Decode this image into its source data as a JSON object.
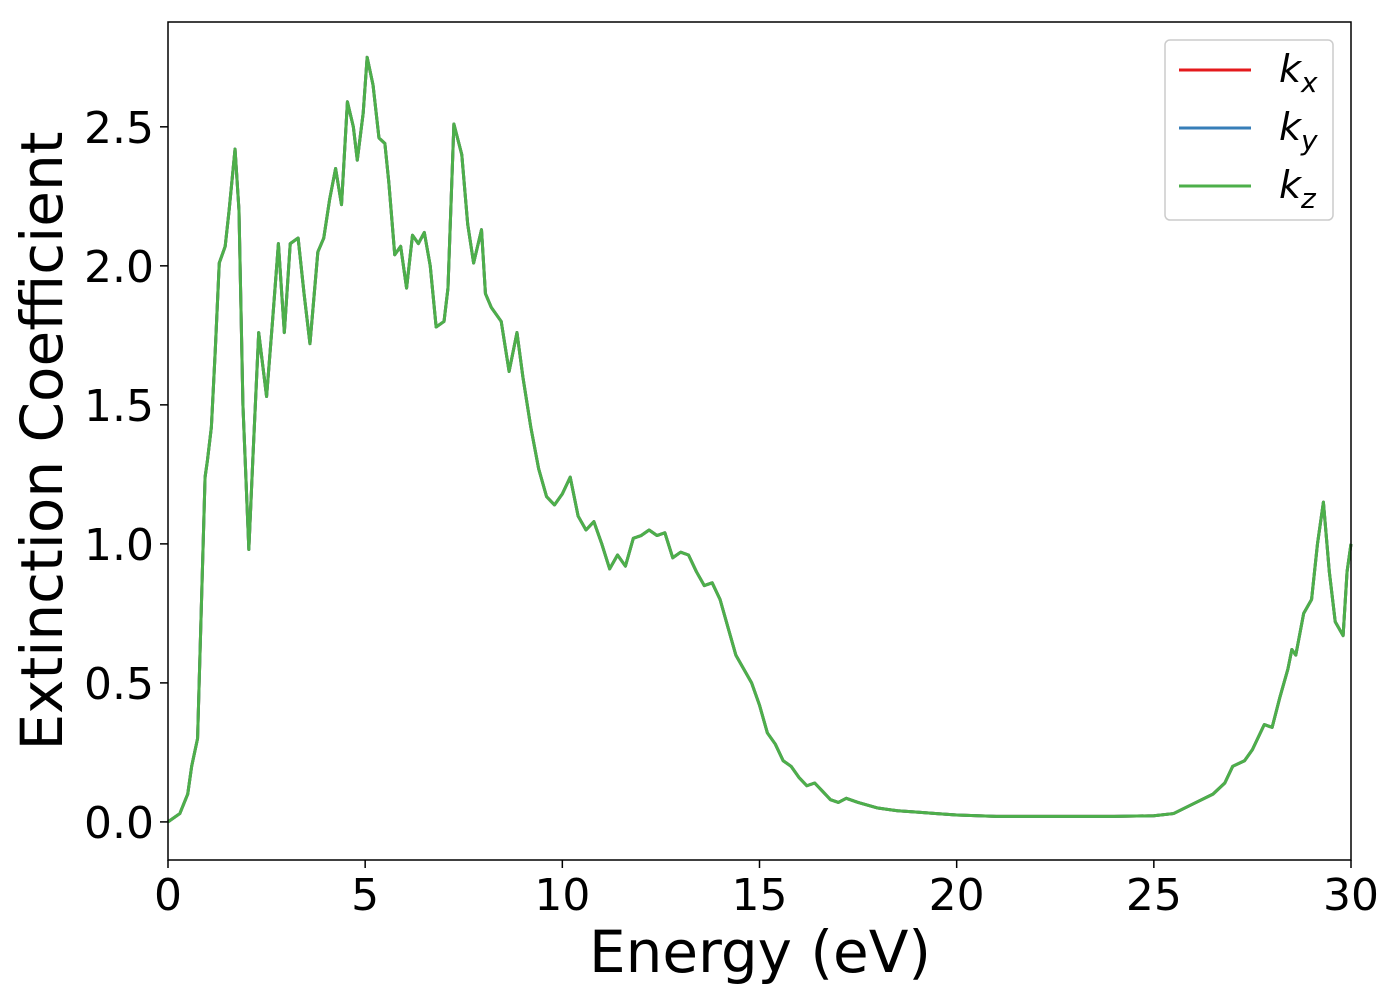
{
  "chart_data": {
    "type": "line",
    "xlabel": "Energy (eV)",
    "ylabel": "Extinction Coefficient",
    "xlim": [
      0,
      30
    ],
    "ylim": [
      -0.137,
      2.877
    ],
    "xticks": [
      0,
      5,
      10,
      15,
      20,
      25,
      30
    ],
    "yticks": [
      {
        "value": 0,
        "label": "0.0"
      },
      0.5,
      {
        "value": 1,
        "label": "1.0"
      },
      1.5,
      {
        "value": 2,
        "label": "2.0"
      },
      2.5
    ],
    "legend": "upper right",
    "x": [
      0,
      0.3,
      0.5,
      0.6,
      0.75,
      0.94,
      1.0,
      1.1,
      1.2,
      1.3,
      1.45,
      1.55,
      1.7,
      1.8,
      1.9,
      2.05,
      2.15,
      2.3,
      2.5,
      2.65,
      2.8,
      2.95,
      3.1,
      3.3,
      3.45,
      3.6,
      3.8,
      3.95,
      4.1,
      4.25,
      4.4,
      4.55,
      4.7,
      4.8,
      4.95,
      5.05,
      5.2,
      5.35,
      5.5,
      5.6,
      5.75,
      5.9,
      6.05,
      6.2,
      6.35,
      6.5,
      6.65,
      6.8,
      7.0,
      7.1,
      7.25,
      7.45,
      7.6,
      7.75,
      7.95,
      8.05,
      8.2,
      8.45,
      8.65,
      8.85,
      9.0,
      9.2,
      9.4,
      9.6,
      9.8,
      10.0,
      10.2,
      10.4,
      10.6,
      10.8,
      11.0,
      11.2,
      11.4,
      11.6,
      11.8,
      12.0,
      12.2,
      12.4,
      12.6,
      12.8,
      13.0,
      13.2,
      13.4,
      13.6,
      13.8,
      14.0,
      14.2,
      14.4,
      14.6,
      14.8,
      15.0,
      15.2,
      15.4,
      15.6,
      15.8,
      16.0,
      16.2,
      16.4,
      16.6,
      16.8,
      17.0,
      17.2,
      17.5,
      18.0,
      18.5,
      19.0,
      19.5,
      20.0,
      21,
      22,
      23,
      24,
      25,
      25.5,
      26,
      26.5,
      26.8,
      27.0,
      27.3,
      27.5,
      27.8,
      28.0,
      28.2,
      28.4,
      28.5,
      28.6,
      28.8,
      29.0,
      29.15,
      29.3,
      29.45,
      29.6,
      29.8,
      29.9,
      30.0
    ],
    "series": [
      {
        "name": "kx",
        "color": "#e41a1c",
        "values": [
          0,
          0.03,
          0.1,
          0.2,
          0.3,
          1.24,
          1.3,
          1.42,
          1.7,
          2.01,
          2.07,
          2.2,
          2.42,
          2.2,
          1.5,
          0.98,
          1.3,
          1.76,
          1.53,
          1.8,
          2.08,
          1.76,
          2.08,
          2.1,
          1.9,
          1.72,
          2.05,
          2.1,
          2.24,
          2.35,
          2.22,
          2.59,
          2.5,
          2.38,
          2.55,
          2.75,
          2.65,
          2.46,
          2.44,
          2.3,
          2.04,
          2.07,
          1.92,
          2.11,
          2.08,
          2.12,
          2.0,
          1.78,
          1.8,
          1.92,
          2.51,
          2.4,
          2.15,
          2.01,
          2.13,
          1.9,
          1.85,
          1.8,
          1.62,
          1.76,
          1.6,
          1.42,
          1.27,
          1.17,
          1.14,
          1.18,
          1.24,
          1.1,
          1.05,
          1.08,
          1.0,
          0.91,
          0.96,
          0.92,
          1.02,
          1.03,
          1.05,
          1.03,
          1.04,
          0.95,
          0.97,
          0.96,
          0.9,
          0.85,
          0.86,
          0.8,
          0.7,
          0.6,
          0.55,
          0.5,
          0.42,
          0.32,
          0.28,
          0.22,
          0.2,
          0.16,
          0.13,
          0.14,
          0.11,
          0.08,
          0.07,
          0.085,
          0.07,
          0.05,
          0.04,
          0.035,
          0.03,
          0.025,
          0.02,
          0.02,
          0.02,
          0.02,
          0.022,
          0.03,
          0.065,
          0.1,
          0.14,
          0.2,
          0.22,
          0.26,
          0.35,
          0.34,
          0.45,
          0.55,
          0.62,
          0.6,
          0.75,
          0.8,
          1.0,
          1.15,
          0.9,
          0.72,
          0.67,
          0.9,
          1.0
        ]
      },
      {
        "name": "ky",
        "color": "#377eb8",
        "values": [
          0,
          0.03,
          0.1,
          0.2,
          0.3,
          1.24,
          1.3,
          1.42,
          1.7,
          2.01,
          2.07,
          2.2,
          2.42,
          2.2,
          1.5,
          0.98,
          1.3,
          1.76,
          1.53,
          1.8,
          2.08,
          1.76,
          2.08,
          2.1,
          1.9,
          1.72,
          2.05,
          2.1,
          2.24,
          2.35,
          2.22,
          2.59,
          2.5,
          2.38,
          2.55,
          2.75,
          2.65,
          2.46,
          2.44,
          2.3,
          2.04,
          2.07,
          1.92,
          2.11,
          2.08,
          2.12,
          2.0,
          1.78,
          1.8,
          1.92,
          2.51,
          2.4,
          2.15,
          2.01,
          2.13,
          1.9,
          1.85,
          1.8,
          1.62,
          1.76,
          1.6,
          1.42,
          1.27,
          1.17,
          1.14,
          1.18,
          1.24,
          1.1,
          1.05,
          1.08,
          1.0,
          0.91,
          0.96,
          0.92,
          1.02,
          1.03,
          1.05,
          1.03,
          1.04,
          0.95,
          0.97,
          0.96,
          0.9,
          0.85,
          0.86,
          0.8,
          0.7,
          0.6,
          0.55,
          0.5,
          0.42,
          0.32,
          0.28,
          0.22,
          0.2,
          0.16,
          0.13,
          0.14,
          0.11,
          0.08,
          0.07,
          0.085,
          0.07,
          0.05,
          0.04,
          0.035,
          0.03,
          0.025,
          0.02,
          0.02,
          0.02,
          0.02,
          0.022,
          0.03,
          0.065,
          0.1,
          0.14,
          0.2,
          0.22,
          0.26,
          0.35,
          0.34,
          0.45,
          0.55,
          0.62,
          0.6,
          0.75,
          0.8,
          1.0,
          1.15,
          0.9,
          0.72,
          0.67,
          0.9,
          1.0
        ]
      },
      {
        "name": "kz",
        "color": "#4daf4a",
        "values": [
          0,
          0.03,
          0.1,
          0.2,
          0.3,
          1.24,
          1.3,
          1.42,
          1.7,
          2.01,
          2.07,
          2.2,
          2.42,
          2.2,
          1.5,
          0.98,
          1.3,
          1.76,
          1.53,
          1.8,
          2.08,
          1.76,
          2.08,
          2.1,
          1.9,
          1.72,
          2.05,
          2.1,
          2.24,
          2.35,
          2.22,
          2.59,
          2.5,
          2.38,
          2.55,
          2.75,
          2.65,
          2.46,
          2.44,
          2.3,
          2.04,
          2.07,
          1.92,
          2.11,
          2.08,
          2.12,
          2.0,
          1.78,
          1.8,
          1.92,
          2.51,
          2.4,
          2.15,
          2.01,
          2.13,
          1.9,
          1.85,
          1.8,
          1.62,
          1.76,
          1.6,
          1.42,
          1.27,
          1.17,
          1.14,
          1.18,
          1.24,
          1.1,
          1.05,
          1.08,
          1.0,
          0.91,
          0.96,
          0.92,
          1.02,
          1.03,
          1.05,
          1.03,
          1.04,
          0.95,
          0.97,
          0.96,
          0.9,
          0.85,
          0.86,
          0.8,
          0.7,
          0.6,
          0.55,
          0.5,
          0.42,
          0.32,
          0.28,
          0.22,
          0.2,
          0.16,
          0.13,
          0.14,
          0.11,
          0.08,
          0.07,
          0.085,
          0.07,
          0.05,
          0.04,
          0.035,
          0.03,
          0.025,
          0.02,
          0.02,
          0.02,
          0.02,
          0.022,
          0.03,
          0.065,
          0.1,
          0.14,
          0.2,
          0.22,
          0.26,
          0.35,
          0.34,
          0.45,
          0.55,
          0.62,
          0.6,
          0.75,
          0.8,
          1.0,
          1.15,
          0.9,
          0.72,
          0.67,
          0.9,
          1.0
        ]
      }
    ]
  }
}
